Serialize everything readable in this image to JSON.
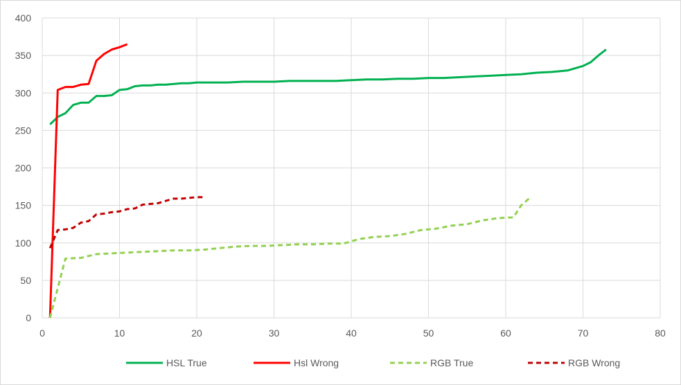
{
  "chart_data": {
    "type": "line",
    "title": "",
    "xlabel": "",
    "ylabel": "",
    "xlim": [
      0,
      80
    ],
    "ylim": [
      0,
      400
    ],
    "x_ticks": [
      0,
      10,
      20,
      30,
      40,
      50,
      60,
      70,
      80
    ],
    "y_ticks": [
      0,
      50,
      100,
      150,
      200,
      250,
      300,
      350,
      400
    ],
    "grid": true,
    "legend_position": "bottom",
    "series": [
      {
        "name": "HSL True",
        "color": "#00b050",
        "dash": "solid",
        "x": [
          1,
          2,
          3,
          4,
          5,
          6,
          7,
          8,
          9,
          10,
          11,
          12,
          13,
          14,
          15,
          16,
          17,
          18,
          19,
          20,
          22,
          24,
          26,
          28,
          30,
          32,
          34,
          36,
          38,
          40,
          42,
          44,
          46,
          48,
          50,
          52,
          54,
          56,
          58,
          60,
          62,
          64,
          66,
          68,
          70,
          71,
          72,
          73
        ],
        "y": [
          258,
          268,
          273,
          284,
          287,
          287,
          296,
          296,
          297,
          304,
          305,
          309,
          310,
          310,
          311,
          311,
          312,
          313,
          313,
          314,
          314,
          314,
          315,
          315,
          315,
          316,
          316,
          316,
          316,
          317,
          318,
          318,
          319,
          319,
          320,
          320,
          321,
          322,
          323,
          324,
          325,
          327,
          328,
          330,
          336,
          341,
          350,
          358
        ]
      },
      {
        "name": "Hsl Wrong",
        "color": "#ff0000",
        "dash": "solid",
        "x": [
          1,
          2,
          3,
          4,
          5,
          6,
          7,
          8,
          9,
          10,
          11
        ],
        "y": [
          0,
          304,
          308,
          308,
          311,
          312,
          343,
          352,
          358,
          361,
          365
        ]
      },
      {
        "name": "RGB True",
        "color": "#92d050",
        "dash": "dashed",
        "x": [
          1,
          3,
          5,
          7,
          9,
          11,
          13,
          15,
          17,
          19,
          21,
          23,
          25,
          27,
          29,
          31,
          33,
          35,
          37,
          39,
          41,
          43,
          45,
          47,
          49,
          51,
          53,
          55,
          57,
          59,
          61,
          62,
          63
        ],
        "y": [
          0,
          79,
          80,
          85,
          86,
          87,
          88,
          89,
          90,
          90,
          91,
          93,
          95,
          96,
          96,
          97,
          98,
          98,
          99,
          99,
          105,
          108,
          109,
          112,
          117,
          119,
          123,
          125,
          130,
          133,
          134,
          150,
          159
        ]
      },
      {
        "name": "RGB Wrong",
        "color": "#c00000",
        "dash": "dashed",
        "x": [
          1,
          2,
          3,
          4,
          5,
          6,
          7,
          8,
          9,
          10,
          11,
          12,
          13,
          14,
          15,
          16,
          17,
          18,
          19,
          20,
          21
        ],
        "y": [
          93,
          117,
          118,
          120,
          127,
          129,
          138,
          139,
          141,
          142,
          145,
          146,
          151,
          152,
          153,
          156,
          159,
          159,
          160,
          161,
          161
        ]
      }
    ]
  }
}
